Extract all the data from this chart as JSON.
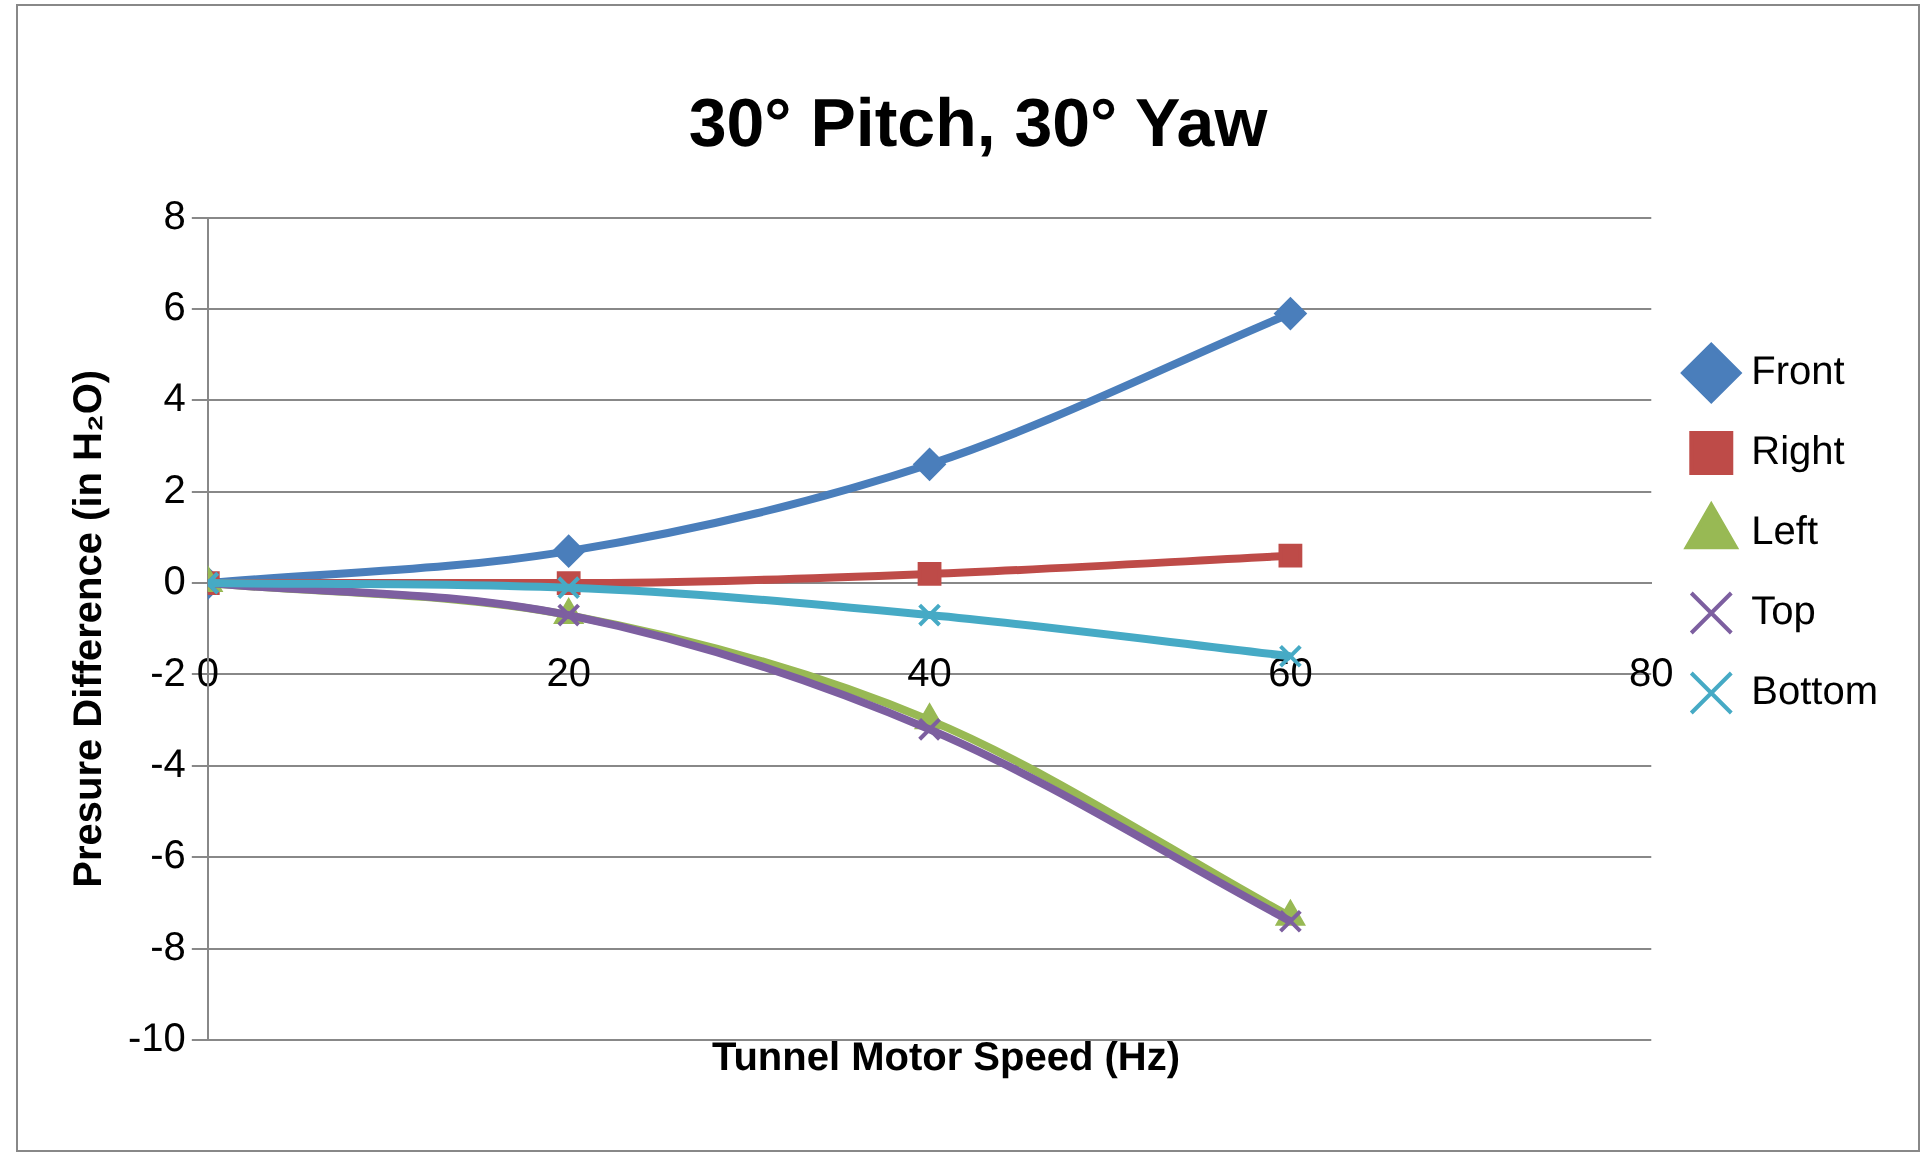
{
  "chart_data": {
    "type": "line",
    "title": "30° Pitch, 30° Yaw",
    "xlabel": "Tunnel Motor Speed (Hz)",
    "ylabel": "Presure Difference (in H₂O)",
    "x": [
      0,
      20,
      40,
      60
    ],
    "xlim": [
      0,
      80
    ],
    "xticks": [
      0,
      20,
      40,
      60,
      80
    ],
    "ylim": [
      -10,
      8
    ],
    "yticks": [
      -10,
      -8,
      -6,
      -4,
      -2,
      0,
      2,
      4,
      6,
      8
    ],
    "grid": "y",
    "legend": "right",
    "series": [
      {
        "name": "Front",
        "color": "#4a7ebb",
        "marker": "diamond",
        "values": [
          0,
          0.7,
          2.6,
          5.9
        ]
      },
      {
        "name": "Right",
        "color": "#be4b48",
        "marker": "square",
        "values": [
          0,
          0,
          0.2,
          0.6
        ]
      },
      {
        "name": "Left",
        "color": "#98b954",
        "marker": "triangle",
        "values": [
          0,
          -0.7,
          -3.0,
          -7.3
        ]
      },
      {
        "name": "Top",
        "color": "#7d5fa0",
        "marker": "cross",
        "values": [
          0,
          -0.7,
          -3.2,
          -7.4
        ]
      },
      {
        "name": "Bottom",
        "color": "#46aac5",
        "marker": "cross",
        "values": [
          0,
          -0.1,
          -0.7,
          -1.6
        ]
      }
    ]
  }
}
